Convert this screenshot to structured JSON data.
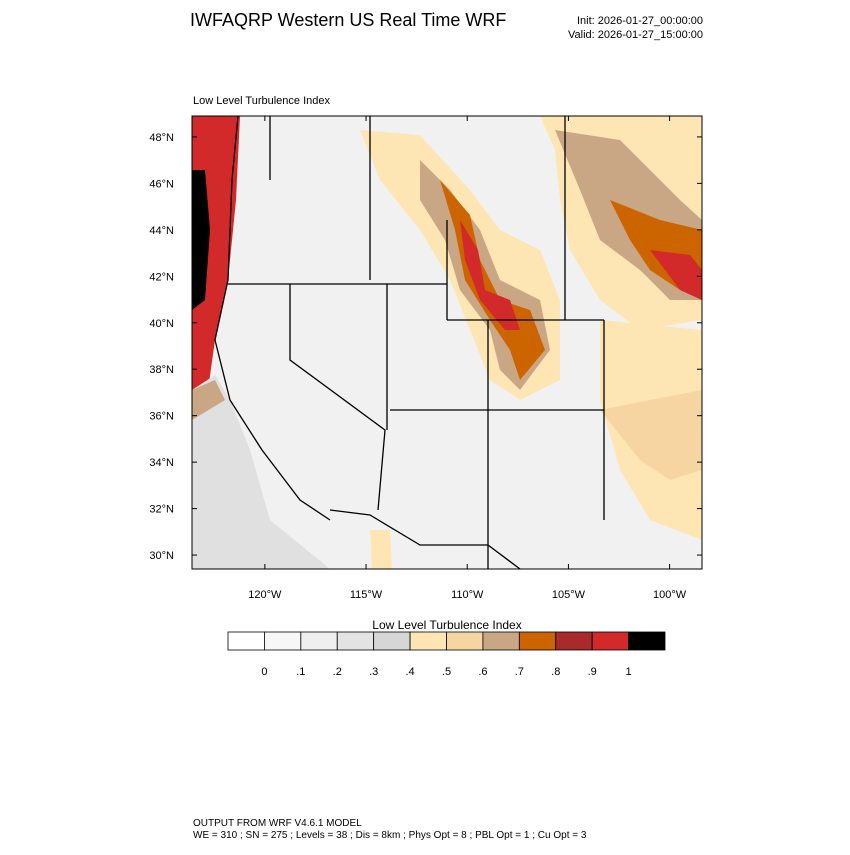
{
  "header": {
    "title": "IWFAQRP Western US Real Time WRF",
    "init": "Init: 2026-01-27_00:00:00",
    "valid": "Valid: 2026-01-27_15:00:00"
  },
  "map": {
    "subtitle": "Low Level Turbulence Index",
    "xlim": [
      -123.6,
      -98.4
    ],
    "ylim": [
      29.4,
      48.9
    ],
    "xticks": [
      {
        "value": -120,
        "label": "120°W"
      },
      {
        "value": -115,
        "label": "115°W"
      },
      {
        "value": -110,
        "label": "110°W"
      },
      {
        "value": -105,
        "label": "105°W"
      },
      {
        "value": -100,
        "label": "100°W"
      }
    ],
    "yticks": [
      {
        "value": 30,
        "label": "30°N"
      },
      {
        "value": 32,
        "label": "32°N"
      },
      {
        "value": 34,
        "label": "34°N"
      },
      {
        "value": 36,
        "label": "36°N"
      },
      {
        "value": 38,
        "label": "38°N"
      },
      {
        "value": 40,
        "label": "40°N"
      },
      {
        "value": 42,
        "label": "42°N"
      },
      {
        "value": 44,
        "label": "44°N"
      },
      {
        "value": 46,
        "label": "46°N"
      },
      {
        "value": 48,
        "label": "48°N"
      }
    ]
  },
  "colorbar": {
    "title": "Low Level Turbulence Index",
    "colors": [
      "#ffffff",
      "#f7f7f7",
      "#efefef",
      "#e3e3e3",
      "#d6d6d6",
      "#fee6b4",
      "#f6d5a3",
      "#c9a784",
      "#cc6500",
      "#a82a2a",
      "#d2292b",
      "#000000"
    ],
    "ticks": [
      0,
      {
        "value": 0.1,
        "label": ".1"
      },
      {
        "value": 0.2,
        "label": ".2"
      },
      {
        "value": 0.3,
        "label": ".3"
      },
      {
        "value": 0.4,
        "label": ".4"
      },
      {
        "value": 0.5,
        "label": ".5"
      },
      {
        "value": 0.6,
        "label": ".6"
      },
      {
        "value": 0.7,
        "label": ".7"
      },
      {
        "value": 0.8,
        "label": ".8"
      },
      {
        "value": 0.9,
        "label": ".9"
      },
      1
    ]
  },
  "footer": {
    "line1": "OUTPUT FROM WRF V4.6.1 MODEL",
    "line2": "WE = 310 ; SN = 275 ; Levels = 38 ; Dis = 8km ; Phys Opt = 8 ; PBL Opt = 1 ; Cu Opt = 3"
  }
}
